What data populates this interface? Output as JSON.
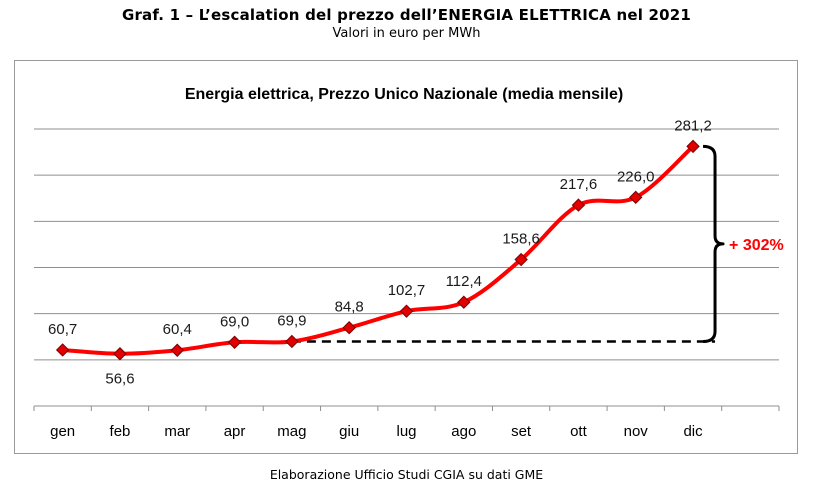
{
  "header": {
    "title": "Graf. 1 – L’escalation del prezzo dell’ENERGIA ELETTRICA nel 2021",
    "subtitle": "Valori in euro per MWh"
  },
  "footer": {
    "source": "Elaborazione Ufficio Studi CGIA su dati GME"
  },
  "chart_data": {
    "type": "line",
    "title": "Energia elettrica, Prezzo Unico Nazionale (media mensile)",
    "categories": [
      "gen",
      "feb",
      "mar",
      "apr",
      "mag",
      "giu",
      "lug",
      "ago",
      "set",
      "ott",
      "nov",
      "dic"
    ],
    "series": [
      {
        "values": [
          60.7,
          56.6,
          60.4,
          69.0,
          69.9,
          84.8,
          102.7,
          112.4,
          158.6,
          217.6,
          226.0,
          281.2
        ],
        "labels": [
          "60,7",
          "56,6",
          "60,4",
          "69,0",
          "69,9",
          "84,8",
          "102,7",
          "112,4",
          "158,6",
          "217,6",
          "226,0",
          "281,2"
        ],
        "color": "#ff0000",
        "marker_color": "#e00000"
      }
    ],
    "ylim": [
      0,
      300
    ],
    "y_gridlines": [
      50,
      100,
      150,
      200,
      250,
      300
    ],
    "grid": true,
    "reference_line": {
      "from_category": "mag",
      "to_category": "dic",
      "value": 69.9,
      "color": "#000000",
      "style": "dashed"
    },
    "annotation": {
      "text": "+ 302%",
      "color": "#ff0000",
      "bracket_from": 69.9,
      "bracket_to": 281.2
    }
  }
}
